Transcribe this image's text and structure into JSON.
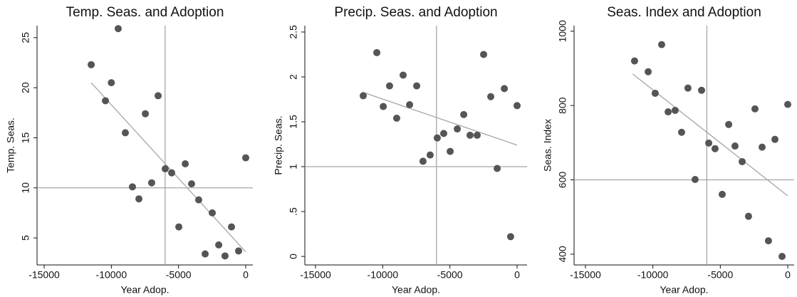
{
  "chart_data": [
    {
      "type": "scatter",
      "title": "Temp. Seas. and Adoption",
      "x_label": "Year Adop.",
      "y_label": "Temp. Seas.",
      "color": "#555555",
      "line_color": "#a6a6a6",
      "x": [
        -11500,
        -10440,
        -9490,
        -10000,
        -8960,
        -8430,
        -7950,
        -7470,
        -7000,
        -6520,
        -5990,
        -5510,
        -4980,
        -4500,
        -4030,
        -3500,
        -3020,
        -2490,
        -2010,
        -1540,
        -1060,
        -530,
        0
      ],
      "values": [
        22.3,
        18.7,
        25.9,
        20.5,
        15.5,
        10.1,
        8.9,
        17.4,
        10.5,
        19.2,
        11.9,
        11.5,
        6.1,
        12.4,
        10.4,
        8.8,
        3.4,
        7.5,
        4.3,
        3.2,
        6.1,
        3.7,
        13.0
      ],
      "fit_line": {
        "x": [
          -11500,
          0
        ],
        "values": [
          20.5,
          3.6
        ]
      },
      "hline": 10,
      "vline": -6000,
      "xlim": [
        -15530,
        530
      ],
      "xticks": [
        -15000,
        -10000,
        -5000,
        0
      ],
      "ylim": [
        2.3,
        26.2
      ],
      "yticks": [
        5,
        10,
        15,
        20,
        25
      ]
    },
    {
      "type": "scatter",
      "title": "Precip. Seas. and Adoption",
      "x_label": "Year Adop.",
      "y_label": "Precip. Seas.",
      "color": "#555555",
      "line_color": "#a6a6a6",
      "x": [
        -11450,
        -10440,
        -9960,
        -9490,
        -8960,
        -8480,
        -8000,
        -7470,
        -7000,
        -6470,
        -5940,
        -5460,
        -4980,
        -4450,
        -3970,
        -3500,
        -2970,
        -2490,
        -1960,
        -1480,
        -950,
        -480,
        0
      ],
      "values": [
        1.79,
        2.27,
        1.67,
        1.9,
        1.54,
        2.02,
        1.69,
        1.9,
        1.06,
        1.13,
        1.32,
        1.37,
        1.17,
        1.42,
        1.58,
        1.35,
        1.35,
        2.25,
        1.78,
        0.98,
        1.87,
        0.22,
        1.68
      ],
      "fit_line": {
        "x": [
          -11500,
          0
        ],
        "values": [
          1.83,
          1.24
        ]
      },
      "hline": 1,
      "vline": -6000,
      "xlim": [
        -15795,
        742
      ],
      "xticks": [
        -15000,
        -10000,
        -5000,
        0
      ],
      "ylim": [
        -0.095,
        2.571
      ],
      "yticks": [
        0,
        {
          "value": 0.5,
          "label": ".5"
        },
        1,
        1.5,
        2,
        2.5
      ]
    },
    {
      "type": "scatter",
      "title": "Seas. Index and Adoption",
      "x_label": "Year Adop.",
      "y_label": "Seas. Index",
      "color": "#555555",
      "line_color": "#a6a6a6",
      "x": [
        -11360,
        -10350,
        -9830,
        -9350,
        -8870,
        -8350,
        -7870,
        -7400,
        -6870,
        -6390,
        -5860,
        -5390,
        -4860,
        -4380,
        -3910,
        -3380,
        -2910,
        -2430,
        -1900,
        -1430,
        -950,
        -420,
        0
      ],
      "values": [
        920,
        891,
        833,
        964,
        783,
        787,
        728,
        847,
        601,
        841,
        699,
        684,
        561,
        749,
        691,
        649,
        502,
        791,
        688,
        436,
        709,
        394,
        803
      ],
      "fit_line": {
        "x": [
          -11500,
          0
        ],
        "values": [
          885,
          557
        ]
      },
      "hline": 600,
      "vline": -6000,
      "xlim": [
        -15845,
        475
      ],
      "xticks": [
        -15000,
        -10000,
        -5000,
        0
      ],
      "ylim": [
        371,
        1015
      ],
      "yticks": [
        400,
        600,
        800,
        1000
      ]
    }
  ]
}
